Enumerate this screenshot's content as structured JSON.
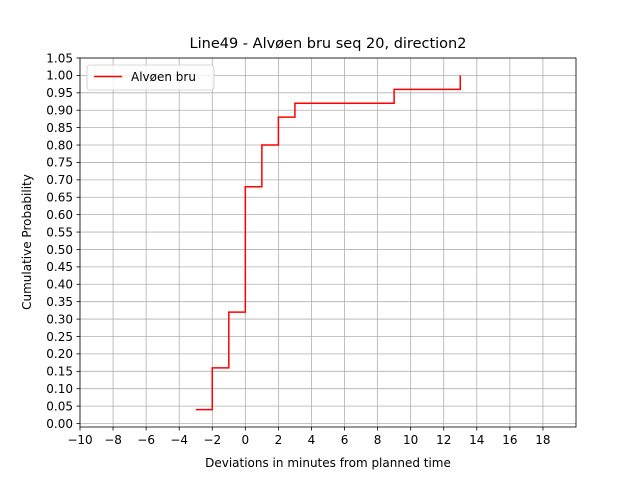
{
  "chart_data": {
    "type": "line",
    "title": "Line49 - Alvøen bru seq 20, direction2",
    "xlabel": "Deviations in minutes from planned time",
    "ylabel": "Cumulative Probability",
    "xlim": [
      -10,
      20
    ],
    "ylim": [
      -0.01,
      1.05
    ],
    "x_ticks": [
      -10,
      -8,
      -6,
      -4,
      -2,
      0,
      2,
      4,
      6,
      8,
      10,
      12,
      14,
      16,
      18
    ],
    "x_tick_labels": [
      "−10",
      "−8",
      "−6",
      "−4",
      "−2",
      "0",
      "2",
      "4",
      "6",
      "8",
      "10",
      "12",
      "14",
      "16",
      "18"
    ],
    "y_ticks": [
      0.0,
      0.05,
      0.1,
      0.15,
      0.2,
      0.25,
      0.3,
      0.35,
      0.4,
      0.45,
      0.5,
      0.55,
      0.6,
      0.65,
      0.7,
      0.75,
      0.8,
      0.85,
      0.9,
      0.95,
      1.0,
      1.05
    ],
    "y_tick_labels": [
      "0.00",
      "0.05",
      "0.10",
      "0.15",
      "0.20",
      "0.25",
      "0.30",
      "0.35",
      "0.40",
      "0.45",
      "0.50",
      "0.55",
      "0.60",
      "0.65",
      "0.70",
      "0.75",
      "0.80",
      "0.85",
      "0.90",
      "0.95",
      "1.00",
      "1.05"
    ],
    "grid": true,
    "legend_position": "top-left",
    "series": [
      {
        "name": "Alvøen bru",
        "color": "#ff0000",
        "step": "post",
        "x": [
          -3,
          -2,
          -1,
          0,
          1,
          2,
          3,
          9,
          13
        ],
        "y": [
          0.04,
          0.16,
          0.32,
          0.68,
          0.8,
          0.88,
          0.92,
          0.96,
          1.0
        ]
      }
    ]
  }
}
